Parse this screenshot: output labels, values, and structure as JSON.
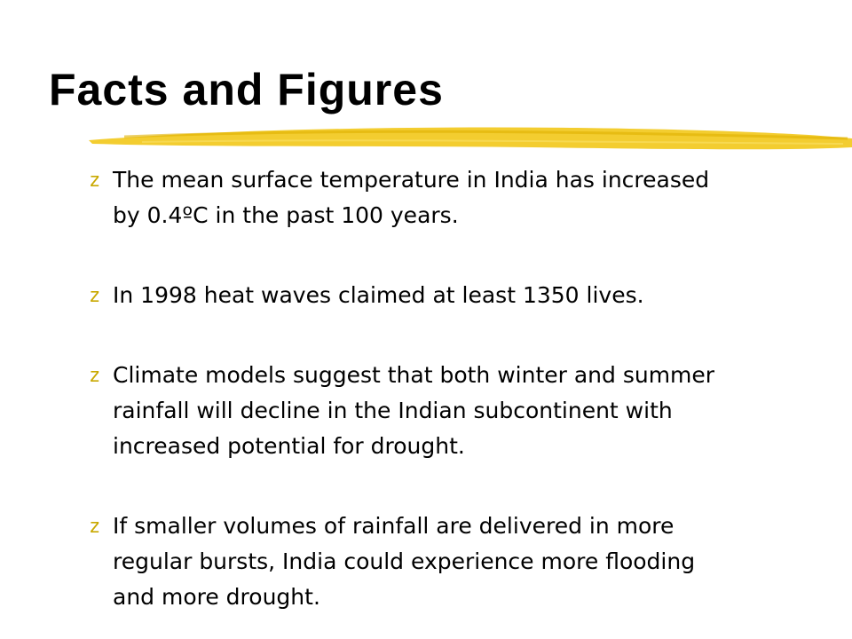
{
  "title": "Facts and Figures",
  "bullets": [
    {
      "marker": "z",
      "lines": [
        "The mean surface temperature in India has increased",
        "by 0.4ºC in the past 100 years."
      ]
    },
    {
      "marker": "z",
      "lines": [
        "In 1998 heat waves claimed at least 1350 lives."
      ]
    },
    {
      "marker": "z",
      "lines": [
        "Climate models suggest that both winter and summer",
        "rainfall will decline in the Indian subcontinent with",
        "increased potential for drought."
      ]
    },
    {
      "marker": "z",
      "lines": [
        "If smaller volumes of rainfall are delivered in more",
        "regular bursts, India could experience more flooding",
        "and more drought."
      ]
    }
  ]
}
